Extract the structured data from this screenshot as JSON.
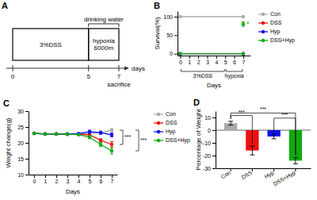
{
  "chart_data": [
    {
      "type": "timeline",
      "title": "A",
      "xlabel": "days",
      "xlim": [
        0,
        7
      ],
      "xticks": [
        0,
        5,
        7
      ],
      "annotations": [
        {
          "text": "drinking water",
          "x": [
            5,
            7
          ],
          "marker": "bracket"
        },
        {
          "text": "3%DSS",
          "x": [
            0,
            5
          ],
          "marker": "box"
        },
        {
          "text": "hypoxia\n6000m",
          "x": [
            5,
            7
          ],
          "marker": "box"
        },
        {
          "text": "sacrifice",
          "x": 7
        }
      ]
    },
    {
      "type": "line",
      "title": "B",
      "xlabel": "Days",
      "ylabel": "Survival(%)",
      "xlim": [
        -0.3,
        7.8
      ],
      "ylim": [
        -5,
        115
      ],
      "xticks": [
        0,
        1,
        2,
        3,
        4,
        5,
        6,
        7
      ],
      "yticks": [
        0,
        50,
        100
      ],
      "legend": "right",
      "series": [
        {
          "name": "Con",
          "color": "#aaaaaa",
          "marker": "circle",
          "x": [
            0,
            7
          ],
          "values": [
            100,
            100
          ]
        },
        {
          "name": "DSS",
          "color": "#ee1111",
          "marker": "circle",
          "x": [
            0,
            7
          ],
          "values": [
            0,
            0
          ]
        },
        {
          "name": "Hyp",
          "color": "#1111ee",
          "marker": "circle",
          "x": [
            0,
            7
          ],
          "values": [
            0,
            0
          ]
        },
        {
          "name": "DSS+Hyp",
          "color": "#11aa11",
          "marker": "circle",
          "x": [
            0,
            7,
            7,
            7
          ],
          "values": [
            0,
            0,
            null,
            80
          ],
          "errors": [
            null,
            null,
            null,
            6
          ]
        }
      ],
      "annotations": [
        {
          "text": "*",
          "x": 7,
          "y": 80,
          "color": "#11aa11"
        },
        {
          "text": "3%DSS",
          "x": [
            0,
            5
          ]
        },
        {
          "text": "hypoxia",
          "x": [
            5,
            7
          ]
        }
      ]
    },
    {
      "type": "line",
      "title": "C",
      "xlabel": "Days",
      "ylabel": "Weight change(g)",
      "xlim": [
        -0.5,
        7.5
      ],
      "ylim": [
        10,
        30
      ],
      "xticks": [
        0,
        1,
        2,
        3,
        4,
        5,
        6,
        7
      ],
      "yticks": [
        10,
        15,
        20,
        25,
        30
      ],
      "legend": "right",
      "x": [
        0,
        1,
        2,
        3,
        4,
        5,
        6,
        7
      ],
      "series": [
        {
          "name": "Con",
          "color": "#aaaaaa",
          "marker": "circle",
          "values": [
            23.0,
            22.8,
            22.8,
            22.8,
            22.8,
            22.9,
            23.2,
            24.0
          ],
          "errors": [
            0.3,
            0.3,
            0.3,
            0.3,
            0.3,
            0.3,
            0.4,
            0.5
          ]
        },
        {
          "name": "DSS",
          "color": "#ee1111",
          "marker": "circle",
          "values": [
            23.0,
            22.8,
            22.8,
            22.7,
            22.7,
            22.5,
            20.8,
            19.5
          ],
          "errors": [
            0.3,
            0.3,
            0.3,
            0.3,
            0.3,
            0.4,
            0.5,
            0.9
          ]
        },
        {
          "name": "Hyp",
          "color": "#1111ee",
          "marker": "circle",
          "values": [
            23.0,
            22.8,
            22.8,
            22.8,
            22.9,
            23.5,
            23.2,
            22.5
          ],
          "errors": [
            0.3,
            0.3,
            0.3,
            0.3,
            0.3,
            0.5,
            0.5,
            0.6
          ]
        },
        {
          "name": "DSS+Hyp",
          "color": "#11aa11",
          "marker": "circle",
          "values": [
            23.0,
            22.8,
            22.8,
            22.7,
            22.6,
            21.8,
            19.5,
            17.5
          ],
          "errors": [
            0.3,
            0.3,
            0.3,
            0.3,
            0.3,
            0.5,
            0.7,
            1.0
          ]
        }
      ],
      "annotations": [
        {
          "text": "***",
          "x": 7,
          "y": [
            24.0,
            19.5
          ]
        },
        {
          "text": "***",
          "x": 7,
          "y": [
            24.0,
            17.5
          ]
        }
      ]
    },
    {
      "type": "bar",
      "title": "D",
      "ylabel": "Percentage of Weight",
      "categories": [
        "Con",
        "DSS",
        "Hyp",
        "DSS+Hyp"
      ],
      "values": [
        5.5,
        -16.0,
        -5.0,
        -24.0
      ],
      "errors": [
        1.5,
        3.5,
        1.8,
        2.5
      ],
      "colors": [
        "#aaaaaa",
        "#ee1111",
        "#1111ee",
        "#11aa11"
      ],
      "ylim": [
        -30,
        15
      ],
      "yticks": [
        -30,
        -20,
        -10,
        0,
        10
      ],
      "annotations": [
        {
          "text": "***",
          "x": [
            "Con",
            "DSS"
          ],
          "y": 11.5
        },
        {
          "text": "***",
          "x": [
            "Con",
            "DSS+Hyp"
          ],
          "y": 13.5
        },
        {
          "text": "***",
          "x": [
            "Hyp",
            "DSS+Hyp"
          ],
          "y": 9.5
        }
      ]
    }
  ]
}
